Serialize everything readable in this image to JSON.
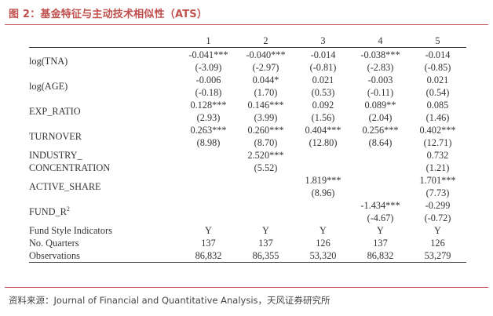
{
  "title": "图 2：基金特征与主动技术相似性（ATS）",
  "table": {
    "columns": [
      "1",
      "2",
      "3",
      "4",
      "5"
    ],
    "rows": [
      {
        "label": "log(TNA)",
        "coef": [
          "-0.041***",
          "-0.040***",
          "-0.014",
          "-0.038***",
          "-0.014"
        ],
        "t": [
          "(-3.09)",
          "(-2.97)",
          "(-0.81)",
          "(-2.83)",
          "(-0.85)"
        ]
      },
      {
        "label": "log(AGE)",
        "coef": [
          "-0.006",
          "0.044*",
          "0.021",
          "-0.003",
          "0.021"
        ],
        "t": [
          "(-0.18)",
          "(1.70)",
          "(0.53)",
          "(-0.11)",
          "(0.54)"
        ]
      },
      {
        "label": "EXP_RATIO",
        "coef": [
          "0.128***",
          "0.146***",
          "0.092",
          "0.089**",
          "0.085"
        ],
        "t": [
          "(2.93)",
          "(3.99)",
          "(1.56)",
          "(2.04)",
          "(1.46)"
        ]
      },
      {
        "label": "TURNOVER",
        "coef": [
          "0.263***",
          "0.260***",
          "0.404***",
          "0.256***",
          "0.402***"
        ],
        "t": [
          "(8.98)",
          "(8.70)",
          "(12.80)",
          "(8.64)",
          "(12.71)"
        ]
      },
      {
        "label": "INDUSTRY_",
        "label2": "CONCENTRATION",
        "coef": [
          "",
          "2.520***",
          "",
          "",
          "0.732"
        ],
        "t": [
          "",
          "(5.52)",
          "",
          "",
          "(1.21)"
        ]
      },
      {
        "label": "ACTIVE_SHARE",
        "coef": [
          "",
          "",
          "1.819***",
          "",
          "1.701***"
        ],
        "t": [
          "",
          "",
          "(8.96)",
          "",
          "(7.73)"
        ]
      },
      {
        "label": "FUND_R",
        "label_sup": "2",
        "coef": [
          "",
          "",
          "",
          "-1.434***",
          "-0.299"
        ],
        "t": [
          "",
          "",
          "",
          "(-4.67)",
          "(-0.72)"
        ]
      }
    ],
    "footer": [
      {
        "label": "Fund Style Indicators",
        "values": [
          "Y",
          "Y",
          "Y",
          "Y",
          "Y"
        ]
      },
      {
        "label": "No. Quarters",
        "values": [
          "137",
          "137",
          "126",
          "137",
          "126"
        ]
      },
      {
        "label": "Observations",
        "values": [
          "86,832",
          "86,355",
          "53,320",
          "86,832",
          "53,279"
        ]
      }
    ]
  },
  "source": "资料来源：Journal of Financial and Quantitative Analysis，天风证券研究所"
}
